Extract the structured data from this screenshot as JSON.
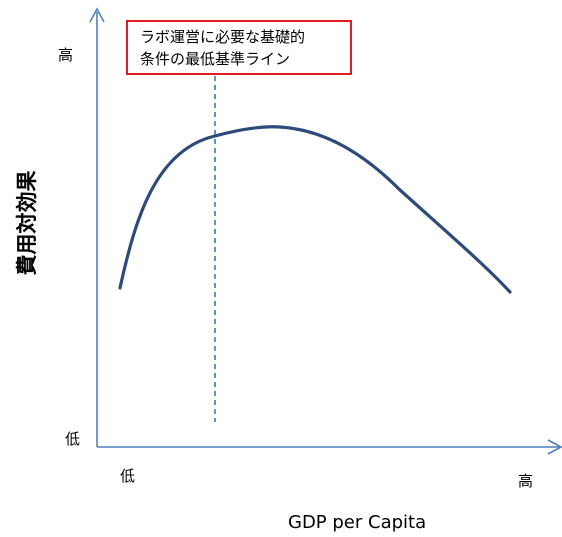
{
  "diagram": {
    "y_axis_label": "費用対効果",
    "x_axis_label": "GDP per Capita",
    "y_high": "高",
    "y_low": "低",
    "x_low": "低",
    "x_high": "高",
    "callout": {
      "line1": "ラボ運営に必要な基礎的",
      "line2": "条件の最低基準ライン"
    },
    "colors": {
      "axis": "#4f81bd",
      "curve": "#2e4a7a",
      "threshold": "#2e6eae",
      "callout_border": "#e11b22"
    }
  }
}
